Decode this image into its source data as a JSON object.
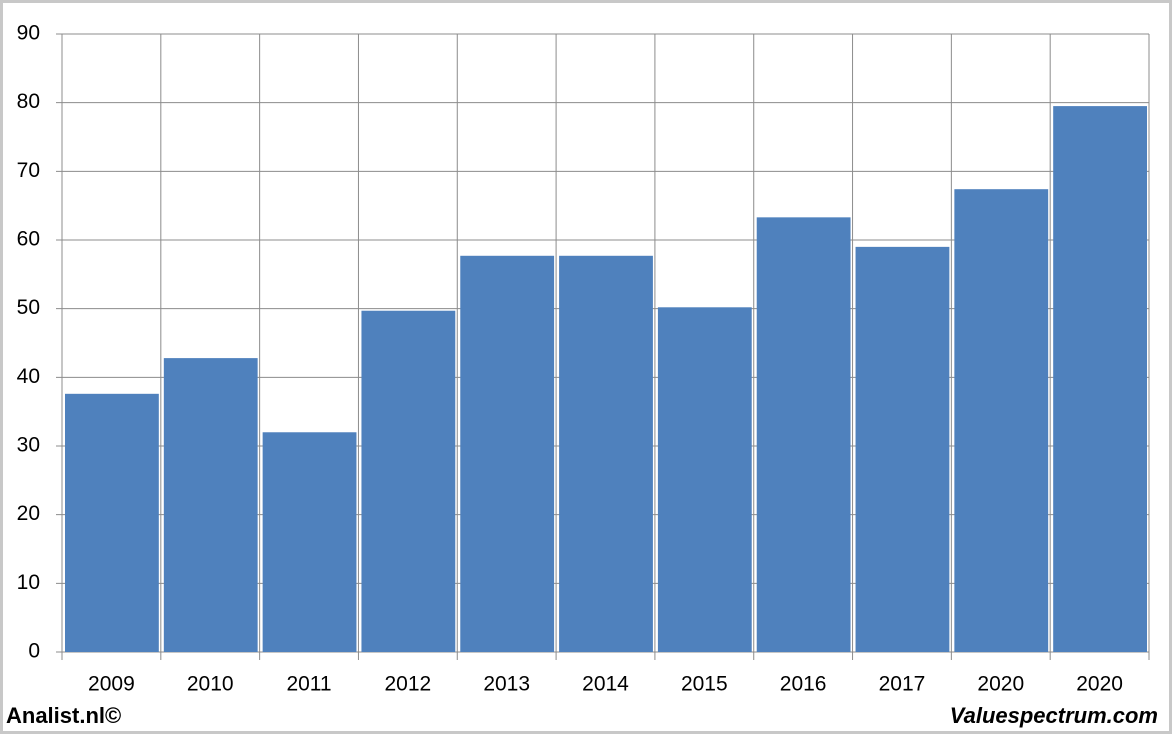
{
  "chart_data": {
    "type": "bar",
    "categories": [
      "2009",
      "2010",
      "2011",
      "2012",
      "2013",
      "2014",
      "2015",
      "2016",
      "2017",
      "2020",
      "2020"
    ],
    "values": [
      37.6,
      42.8,
      32.0,
      49.7,
      57.7,
      57.7,
      50.2,
      63.3,
      59.0,
      67.4,
      79.5
    ],
    "color": "#4f81bd",
    "ylim": [
      0,
      90
    ],
    "yticks": [
      0,
      10,
      20,
      30,
      40,
      50,
      60,
      70,
      80,
      90
    ],
    "grid": true,
    "annotations": [
      "Analist.nl©",
      "Valuespectrum.com"
    ]
  }
}
